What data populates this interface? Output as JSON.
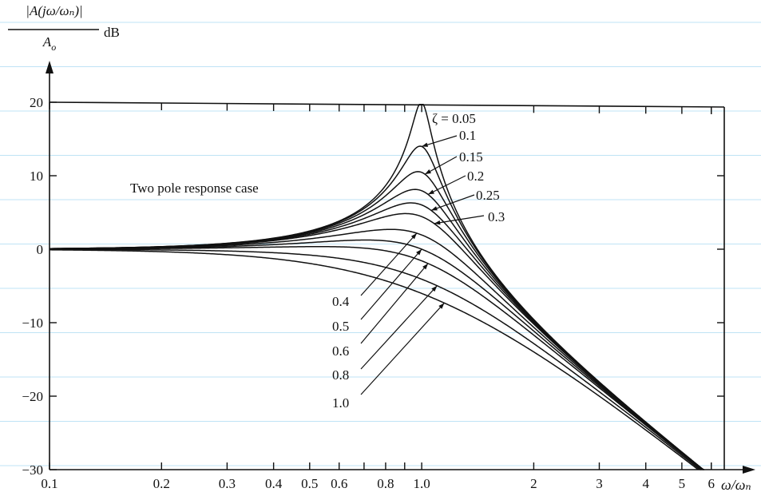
{
  "chart_data": {
    "type": "line",
    "x_scale": "log",
    "xlabel": "ω/ωₙ",
    "ylabel": {
      "numerator": "|A(jω/ωₙ)|",
      "denominator": "A",
      "denominator_sub": "o",
      "unit": "dB"
    },
    "annotation": "Two pole response case",
    "xlim": [
      0.1,
      6.5
    ],
    "ylim": [
      -30,
      20
    ],
    "x_ticks": [
      0.1,
      0.2,
      0.3,
      0.4,
      0.5,
      0.6,
      0.8,
      1.0,
      2,
      3,
      4,
      5,
      6
    ],
    "x_tick_labels": [
      "0.1",
      "0.2",
      "0.3",
      "0.4",
      "0.5",
      "0.6",
      "0.8",
      "1.0",
      "2",
      "3",
      "4",
      "5",
      "6"
    ],
    "y_ticks": [
      20,
      10,
      0,
      -10,
      -20,
      -30
    ],
    "y_tick_labels": [
      "20",
      "10",
      "0",
      "−10",
      "−20",
      "−30"
    ],
    "grid": false,
    "series": [
      {
        "zeta": 0.05,
        "label": "ζ = 0.05"
      },
      {
        "zeta": 0.1,
        "label": "0.1"
      },
      {
        "zeta": 0.15,
        "label": "0.15"
      },
      {
        "zeta": 0.2,
        "label": "0.2"
      },
      {
        "zeta": 0.25,
        "label": "0.25"
      },
      {
        "zeta": 0.3,
        "label": "0.3"
      },
      {
        "zeta": 0.4,
        "label": "0.4"
      },
      {
        "zeta": 0.5,
        "label": "0.5"
      },
      {
        "zeta": 0.6,
        "label": "0.6"
      },
      {
        "zeta": 0.8,
        "label": "0.8"
      },
      {
        "zeta": 1.0,
        "label": "1.0"
      }
    ]
  }
}
